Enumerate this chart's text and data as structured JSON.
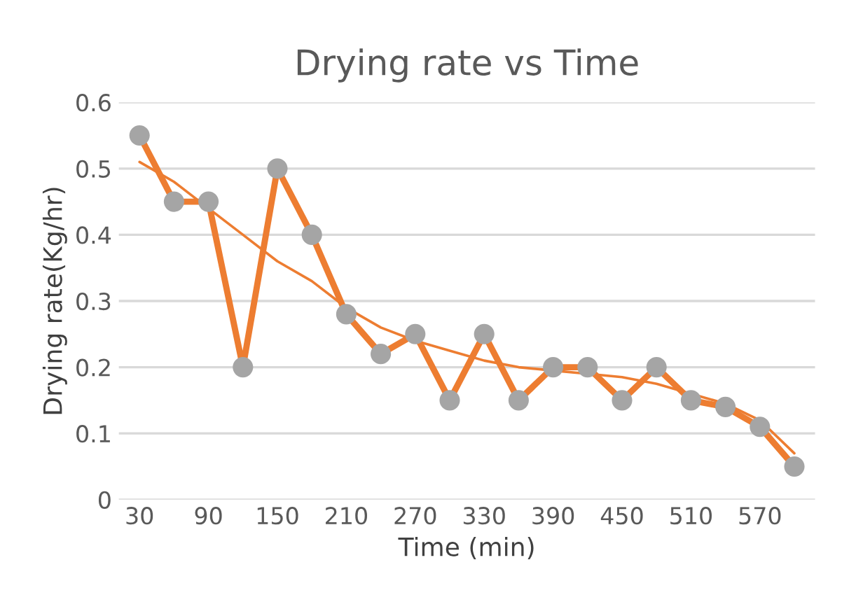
{
  "chart_data": {
    "type": "line",
    "title": "Drying rate vs Time",
    "xlabel": "Time (min)",
    "ylabel": "Drying rate(Kg/hr)",
    "categories": [
      "30",
      null,
      "90",
      null,
      "150",
      null,
      "210",
      null,
      "270",
      null,
      "330",
      null,
      "390",
      null,
      "450",
      null,
      "510",
      null,
      "570",
      null
    ],
    "series": [
      {
        "color": "#ed7d31",
        "marker": "circle",
        "colors": [
          "#a5a5a5",
          "#a5a5a5",
          "#a5a5a5",
          "#a5a5a5",
          "#a5a5a5",
          "#a5a5a5",
          "#a5a5a5",
          "#a5a5a5",
          "#a5a5a5",
          "#a5a5a5",
          "#a5a5a5",
          "#a5a5a5",
          "#a5a5a5",
          "#a5a5a5",
          "#a5a5a5",
          "#a5a5a5",
          "#a5a5a5",
          "#a5a5a5",
          "#a5a5a5",
          "#a5a5a5"
        ],
        "values": [
          0.55,
          0.45,
          0.45,
          0.2,
          0.5,
          0.4,
          0.28,
          0.22,
          0.25,
          0.15,
          0.25,
          0.15,
          0.2,
          0.2,
          0.15,
          0.2,
          0.15,
          0.14,
          0.11,
          0.05
        ]
      },
      {
        "color": "#ed7d31",
        "marker": "none",
        "values": [
          0.51,
          0.48,
          0.44,
          0.4,
          0.36,
          0.33,
          0.29,
          0.26,
          0.24,
          0.225,
          0.21,
          0.2,
          0.195,
          0.19,
          0.185,
          0.175,
          0.16,
          0.145,
          0.12,
          0.07
        ]
      }
    ],
    "ylim": [
      0,
      0.6
    ],
    "yticks": [
      0,
      0.1,
      0.2,
      0.3,
      0.4,
      0.5,
      0.6
    ],
    "grid": "y",
    "legend": false
  }
}
